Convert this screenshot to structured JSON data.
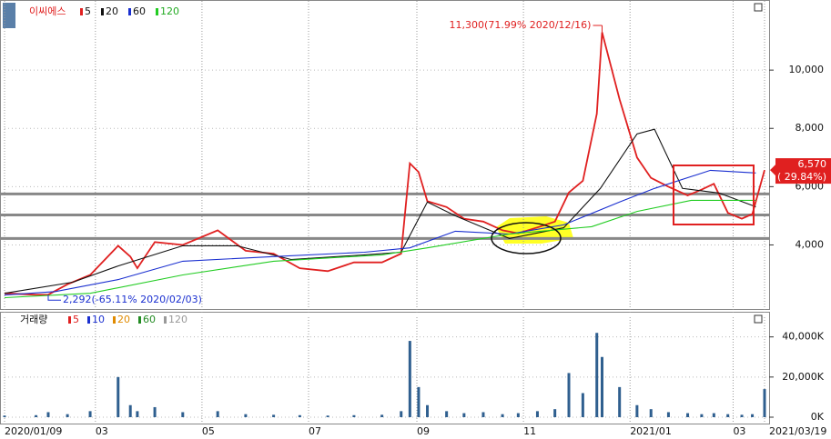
{
  "chart_data": [
    {
      "type": "line",
      "title": "이씨에스",
      "x": [
        0,
        18,
        25,
        36,
        49,
        65,
        72,
        76,
        86,
        102,
        122,
        138,
        154,
        169,
        185,
        200,
        216,
        227,
        232,
        237,
        242,
        253,
        263,
        274,
        285,
        294,
        305,
        315,
        323,
        331,
        339,
        342,
        352,
        362,
        370,
        380,
        391,
        399,
        406,
        414,
        422,
        428,
        435
      ],
      "series": [
        {
          "name": "5",
          "color": "#e02020",
          "values": [
            2340,
            2290,
            2292,
            2650,
            2970,
            3970,
            3600,
            3200,
            4100,
            4000,
            4500,
            3800,
            3700,
            3200,
            3100,
            3400,
            3400,
            3700,
            6800,
            6500,
            5500,
            5300,
            4900,
            4800,
            4500,
            4400,
            4600,
            4800,
            5800,
            6200,
            8500,
            11300,
            9000,
            7000,
            6300,
            6000,
            5700,
            5900,
            6100,
            5100,
            4900,
            5060,
            6570
          ]
        },
        {
          "name": "20",
          "color": "#111111",
          "x": [
            0,
            39,
            65,
            102,
            133,
            164,
            206,
            227,
            242,
            258,
            289,
            320,
            341,
            362,
            372,
            388,
            409,
            430
          ],
          "values": [
            2340,
            2720,
            3280,
            3970,
            3970,
            3500,
            3660,
            3750,
            5470,
            5000,
            4220,
            4590,
            5940,
            7810,
            7970,
            5940,
            5780,
            5310
          ]
        },
        {
          "name": "60",
          "color": "#1a2fd0",
          "x": [
            0,
            29,
            65,
            102,
            154,
            206,
            232,
            258,
            289,
            320,
            352,
            372,
            404,
            430
          ],
          "values": [
            2280,
            2400,
            2810,
            3440,
            3600,
            3750,
            3900,
            4470,
            4375,
            4690,
            5470,
            5940,
            6560,
            6470
          ]
        },
        {
          "name": "120",
          "color": "#22cc22",
          "x": [
            0,
            49,
            102,
            154,
            216,
            242,
            289,
            336,
            362,
            393,
            430
          ],
          "values": [
            2190,
            2340,
            2970,
            3440,
            3660,
            3900,
            4375,
            4625,
            5150,
            5530,
            5530
          ]
        }
      ],
      "xlim": [
        0,
        435
      ],
      "ylim": [
        1800,
        12250
      ],
      "yticks": [
        {
          "value": 4000,
          "label": "4,000"
        },
        {
          "value": 6000,
          "label": "6,000"
        },
        {
          "value": 8000,
          "label": "8,000"
        },
        {
          "value": 10000,
          "label": "10,000"
        }
      ],
      "hlines": [
        5750,
        5030,
        4220
      ],
      "high": {
        "x": 342,
        "value": 11300,
        "label": "11,300(71.99% 2020/12/16)"
      },
      "low": {
        "x": 25,
        "value": 2292,
        "label": "2,292(-65.11% 2020/02/03)"
      },
      "last_price": {
        "value": 6570,
        "label": "6,570"
      },
      "last_change": "( 29.84%)"
    },
    {
      "type": "bar",
      "title": "거래량",
      "color": "#2f5f8f",
      "x": [
        0,
        18,
        25,
        36,
        49,
        65,
        72,
        76,
        86,
        102,
        122,
        138,
        154,
        169,
        185,
        200,
        216,
        227,
        232,
        237,
        242,
        253,
        263,
        274,
        285,
        294,
        305,
        315,
        323,
        331,
        339,
        342,
        352,
        362,
        370,
        380,
        391,
        399,
        406,
        414,
        422,
        428,
        435
      ],
      "values": [
        800,
        1000,
        2500,
        1500,
        3000,
        20000,
        6000,
        3000,
        5000,
        2500,
        3000,
        1500,
        1200,
        1000,
        800,
        1000,
        1200,
        3000,
        38000,
        15000,
        6000,
        3000,
        2000,
        2500,
        1500,
        2000,
        3000,
        4000,
        22000,
        12000,
        42000,
        30000,
        15000,
        6000,
        4000,
        2500,
        2000,
        1500,
        2000,
        1500,
        1200,
        1500,
        14000
      ],
      "legend_items": [
        {
          "name": "5",
          "color": "#e02020"
        },
        {
          "name": "10",
          "color": "#1a2fd0"
        },
        {
          "name": "20",
          "color": "#e08a00"
        },
        {
          "name": "60",
          "color": "#228b22"
        },
        {
          "name": "120",
          "color": "#999999"
        }
      ],
      "xlim": [
        0,
        435
      ],
      "ylim": [
        0,
        48000
      ],
      "yticks": [
        {
          "value": 0,
          "label": "0K"
        },
        {
          "value": 20000,
          "label": "20,000K"
        },
        {
          "value": 40000,
          "label": "40,000K"
        }
      ],
      "xticks": [
        {
          "value": 0,
          "label": "2020/01/09"
        },
        {
          "value": 52,
          "label": "03"
        },
        {
          "value": 113,
          "label": "05"
        },
        {
          "value": 174,
          "label": "07"
        },
        {
          "value": 236,
          "label": "09"
        },
        {
          "value": 297,
          "label": "11"
        },
        {
          "value": 358,
          "label": "2021/01"
        },
        {
          "value": 417,
          "label": "03"
        },
        {
          "value": 435,
          "label": "2021/03/19"
        }
      ]
    }
  ]
}
